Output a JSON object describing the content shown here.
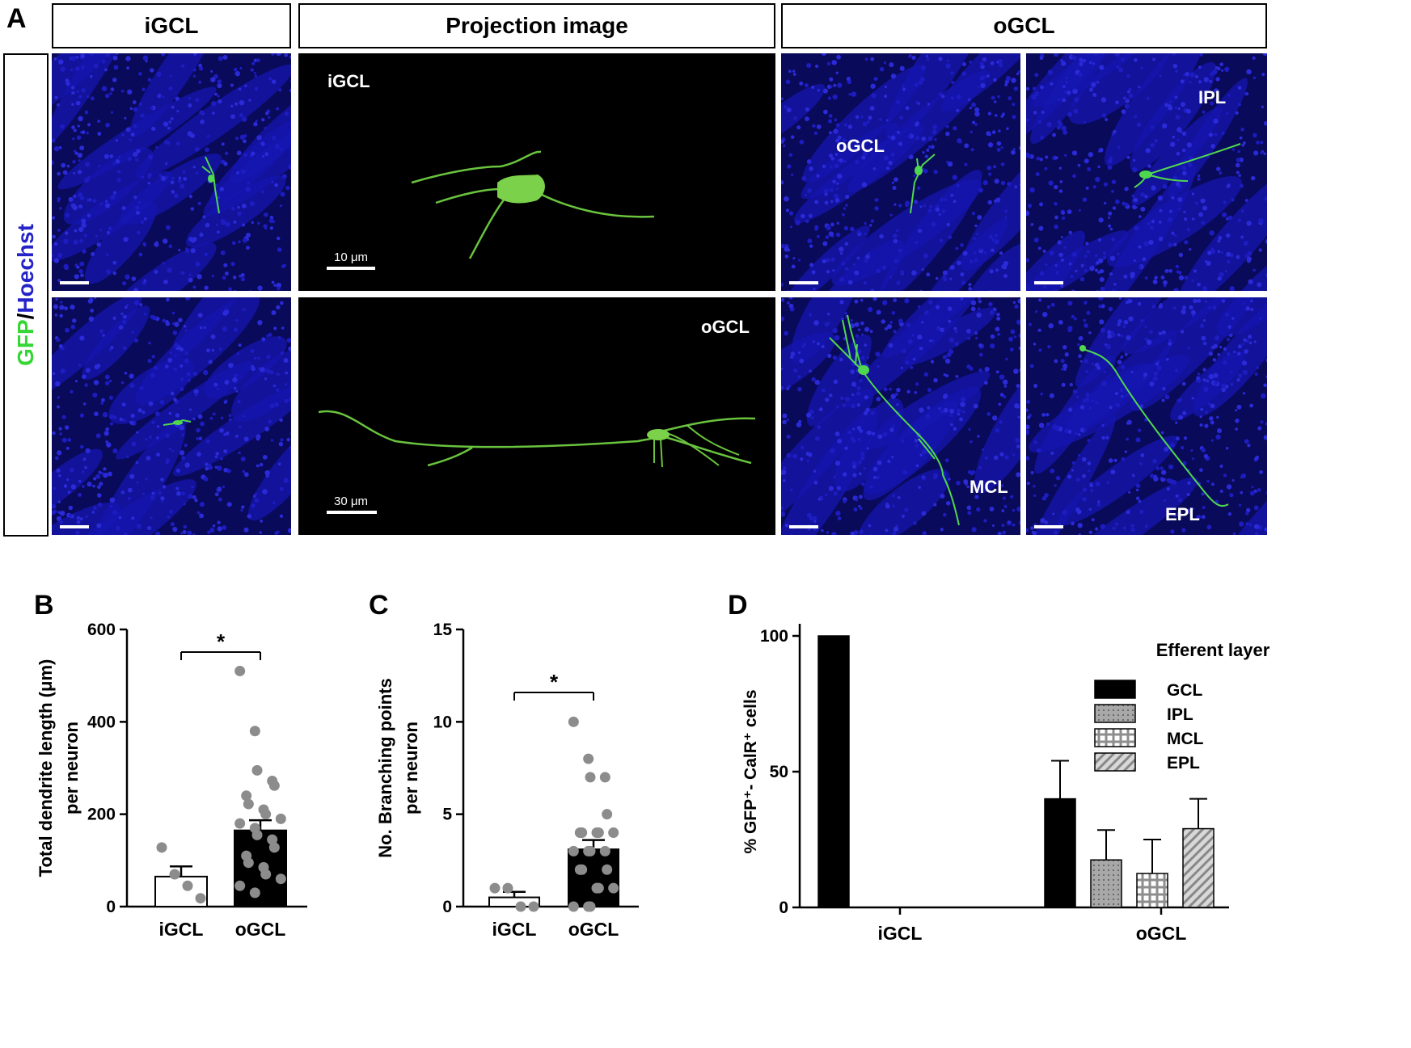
{
  "panel_a": {
    "label": "A",
    "headers": [
      "iGCL",
      "Projection image",
      "oGCL"
    ],
    "stain": {
      "gfp": "GFP",
      "slash": "/",
      "hoechst": "Hoechst",
      "gfp_color": "#36d636",
      "hoechst_color": "#2424c8"
    },
    "images": {
      "proj_top_label": "iGCL",
      "proj_bottom_label": "oGCL",
      "scale_top": "10 μm",
      "scale_bottom": "30 μm",
      "ogcl_tl": "oGCL",
      "ogcl_tr": "IPL",
      "ogcl_bl": "MCL",
      "ogcl_br": "EPL"
    }
  },
  "chart_data": [
    {
      "panel": "B",
      "type": "bar",
      "categories": [
        "iGCL",
        "oGCL"
      ],
      "values": [
        65,
        165
      ],
      "errors": [
        22,
        22
      ],
      "ylabel_line1": "Total dendrite length (μm)",
      "ylabel_line2": "per neuron",
      "ylim": [
        0,
        600
      ],
      "yticks": [
        0,
        200,
        400,
        600
      ],
      "bar_fill": [
        "#ffffff",
        "#000000"
      ],
      "significance": "*",
      "points": [
        [
          128,
          70,
          45,
          18
        ],
        [
          510,
          380,
          295,
          272,
          262,
          240,
          222,
          210,
          200,
          190,
          180,
          170,
          155,
          145,
          128,
          110,
          95,
          85,
          70,
          60,
          45,
          30
        ]
      ]
    },
    {
      "panel": "C",
      "type": "bar",
      "categories": [
        "iGCL",
        "oGCL"
      ],
      "values": [
        0.5,
        3.1
      ],
      "errors": [
        0.3,
        0.5
      ],
      "ylabel_line1": "No. Branching points",
      "ylabel_line2": "per neuron",
      "ylim": [
        0,
        15
      ],
      "yticks": [
        0,
        5,
        10,
        15
      ],
      "bar_fill": [
        "#ffffff",
        "#000000"
      ],
      "significance": "*",
      "points": [
        [
          1,
          1,
          0,
          0
        ],
        [
          10,
          8,
          7,
          7,
          5,
          4,
          4,
          4,
          4,
          4,
          3,
          3,
          3,
          3,
          2,
          2,
          2,
          1,
          1,
          1,
          0,
          0,
          0
        ]
      ]
    },
    {
      "panel": "D",
      "type": "bar",
      "categories": [
        "iGCL",
        "oGCL"
      ],
      "ylabel": "% GFP⁺- CalR⁺ cells",
      "ylim": [
        0,
        100
      ],
      "yticks": [
        0,
        50,
        100
      ],
      "legend_title": "Efferent layer",
      "legend_placement": "top-right",
      "series": [
        {
          "name": "GCL",
          "values": [
            100,
            40
          ],
          "errors": [
            0,
            14
          ],
          "pattern": "solid"
        },
        {
          "name": "IPL",
          "values": [
            0,
            17.5
          ],
          "errors": [
            0,
            11
          ],
          "pattern": "dots"
        },
        {
          "name": "MCL",
          "values": [
            0,
            12.5
          ],
          "errors": [
            0,
            12.5
          ],
          "pattern": "grid"
        },
        {
          "name": "EPL",
          "values": [
            0,
            29
          ],
          "errors": [
            0,
            11
          ],
          "pattern": "diagonal"
        }
      ]
    }
  ]
}
